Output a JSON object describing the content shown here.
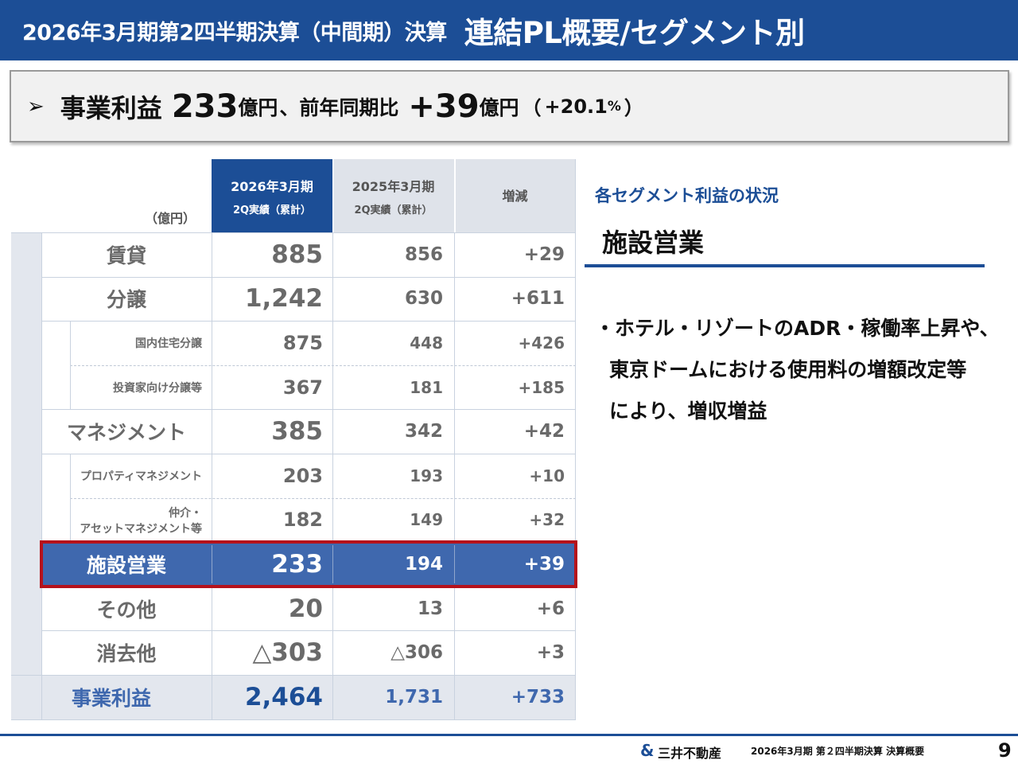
{
  "header": {
    "subtitle": "2026年3月期第2四半期決算（中間期）決算",
    "title": "連結PL概要/セグメント別"
  },
  "headline": {
    "arrow": "➢",
    "label": "事業利益",
    "value": "233",
    "unit": "億円",
    "mid": "、前年同期比",
    "diff": "+39",
    "unit2": "億円",
    "paren_open": "（",
    "pct_value": "+20.1",
    "pct_sign": "%",
    "paren_close": "）"
  },
  "table": {
    "unit_label": "（億円）",
    "columns": [
      {
        "line1": "2026年3月期",
        "line2": "2Q実績（累計）"
      },
      {
        "line1": "2025年3月期",
        "line2": "2Q実績（累計）"
      },
      {
        "line1": "増減",
        "line2": ""
      }
    ],
    "rows": [
      {
        "label": "賃貸",
        "label2": "",
        "cur": "885",
        "prev": "856",
        "diff": "+29"
      },
      {
        "label": "分譲",
        "label2": "",
        "cur": "1,242",
        "prev": "630",
        "diff": "+611"
      },
      {
        "label": "国内住宅分譲",
        "label2": "",
        "cur": "875",
        "prev": "448",
        "diff": "+426"
      },
      {
        "label": "投資家向け分譲等",
        "label2": "",
        "cur": "367",
        "prev": "181",
        "diff": "+185"
      },
      {
        "label": "マネジメント",
        "label2": "",
        "cur": "385",
        "prev": "342",
        "diff": "+42"
      },
      {
        "label": "プロパティマネジメント",
        "label2": "",
        "cur": "203",
        "prev": "193",
        "diff": "+10"
      },
      {
        "label": "仲介・",
        "label2": "アセットマネジメント等",
        "cur": "182",
        "prev": "149",
        "diff": "+32"
      },
      {
        "label": "施設営業",
        "label2": "",
        "cur": "233",
        "prev": "194",
        "diff": "+39"
      },
      {
        "label": "その他",
        "label2": "",
        "cur": "20",
        "prev": "13",
        "diff": "+6"
      },
      {
        "label": "消去他",
        "label2": "",
        "cur": "△303",
        "prev": "△306",
        "diff": "+3"
      },
      {
        "label": "事業利益",
        "label2": "",
        "cur": "2,464",
        "prev": "1,731",
        "diff": "+733"
      }
    ]
  },
  "segment": {
    "title": "各セグメント利益の状況",
    "name": "施設営業",
    "lines": [
      "・ホテル・リゾートのADR・稼働率上昇や、",
      "東京ドームにおける使用料の増額改定等",
      "により、増収増益"
    ]
  },
  "footer": {
    "logo_mark": "&",
    "company": "三井不動産",
    "doc_title": "2026年3月期 第２四半期決算 決算概要",
    "page_number": "9"
  },
  "colors": {
    "brand_blue": "#1c4e96",
    "highlight_row": "#3f68ae",
    "highlight_border": "#b5121b",
    "header_gray": "#dfe3ea",
    "side_bar": "#e3e7ee"
  }
}
